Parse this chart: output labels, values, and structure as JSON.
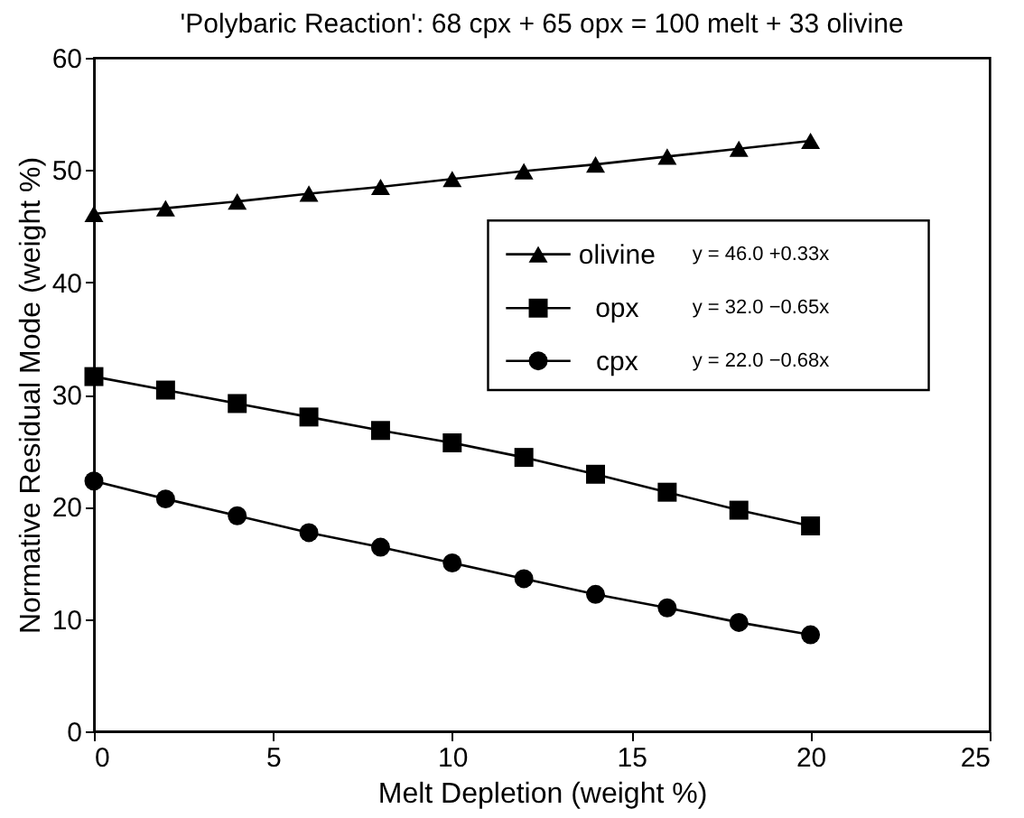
{
  "chart_data": {
    "type": "line",
    "title": "'Polybaric Reaction': 68 cpx + 65 opx = 100 melt + 33 olivine",
    "xlabel": "Melt Depletion (weight %)",
    "ylabel": "Normative Residual Mode (weight %)",
    "x": [
      0,
      2,
      4,
      6,
      8,
      10,
      12,
      14,
      16,
      18,
      20
    ],
    "series": [
      {
        "name": "olivine",
        "color": "#000000",
        "marker": "triangle",
        "values": [
          46.1,
          46.6,
          47.2,
          47.9,
          48.5,
          49.2,
          49.9,
          50.5,
          51.2,
          51.9,
          52.6
        ]
      },
      {
        "name": "opx",
        "color": "#000000",
        "marker": "square",
        "values": [
          31.6,
          30.4,
          29.2,
          28.0,
          26.8,
          25.7,
          24.4,
          22.9,
          21.3,
          19.7,
          18.3
        ]
      },
      {
        "name": "cpx",
        "color": "#000000",
        "marker": "circle",
        "values": [
          22.3,
          20.7,
          19.2,
          17.7,
          16.4,
          15.0,
          13.6,
          12.2,
          11.0,
          9.7,
          8.6
        ]
      }
    ],
    "annotations": [
      "y = 46.0 +0.33x",
      "y = 32.0 −0.65x",
      "y = 22.0 −0.68x"
    ],
    "xlim": [
      0,
      25
    ],
    "xticks": [
      0,
      5,
      10,
      15,
      20,
      25
    ],
    "ylim": [
      0,
      60
    ],
    "yticks": [
      0,
      10,
      20,
      30,
      40,
      50,
      60
    ],
    "grid": false,
    "legend": "right",
    "line_style": "solid"
  }
}
